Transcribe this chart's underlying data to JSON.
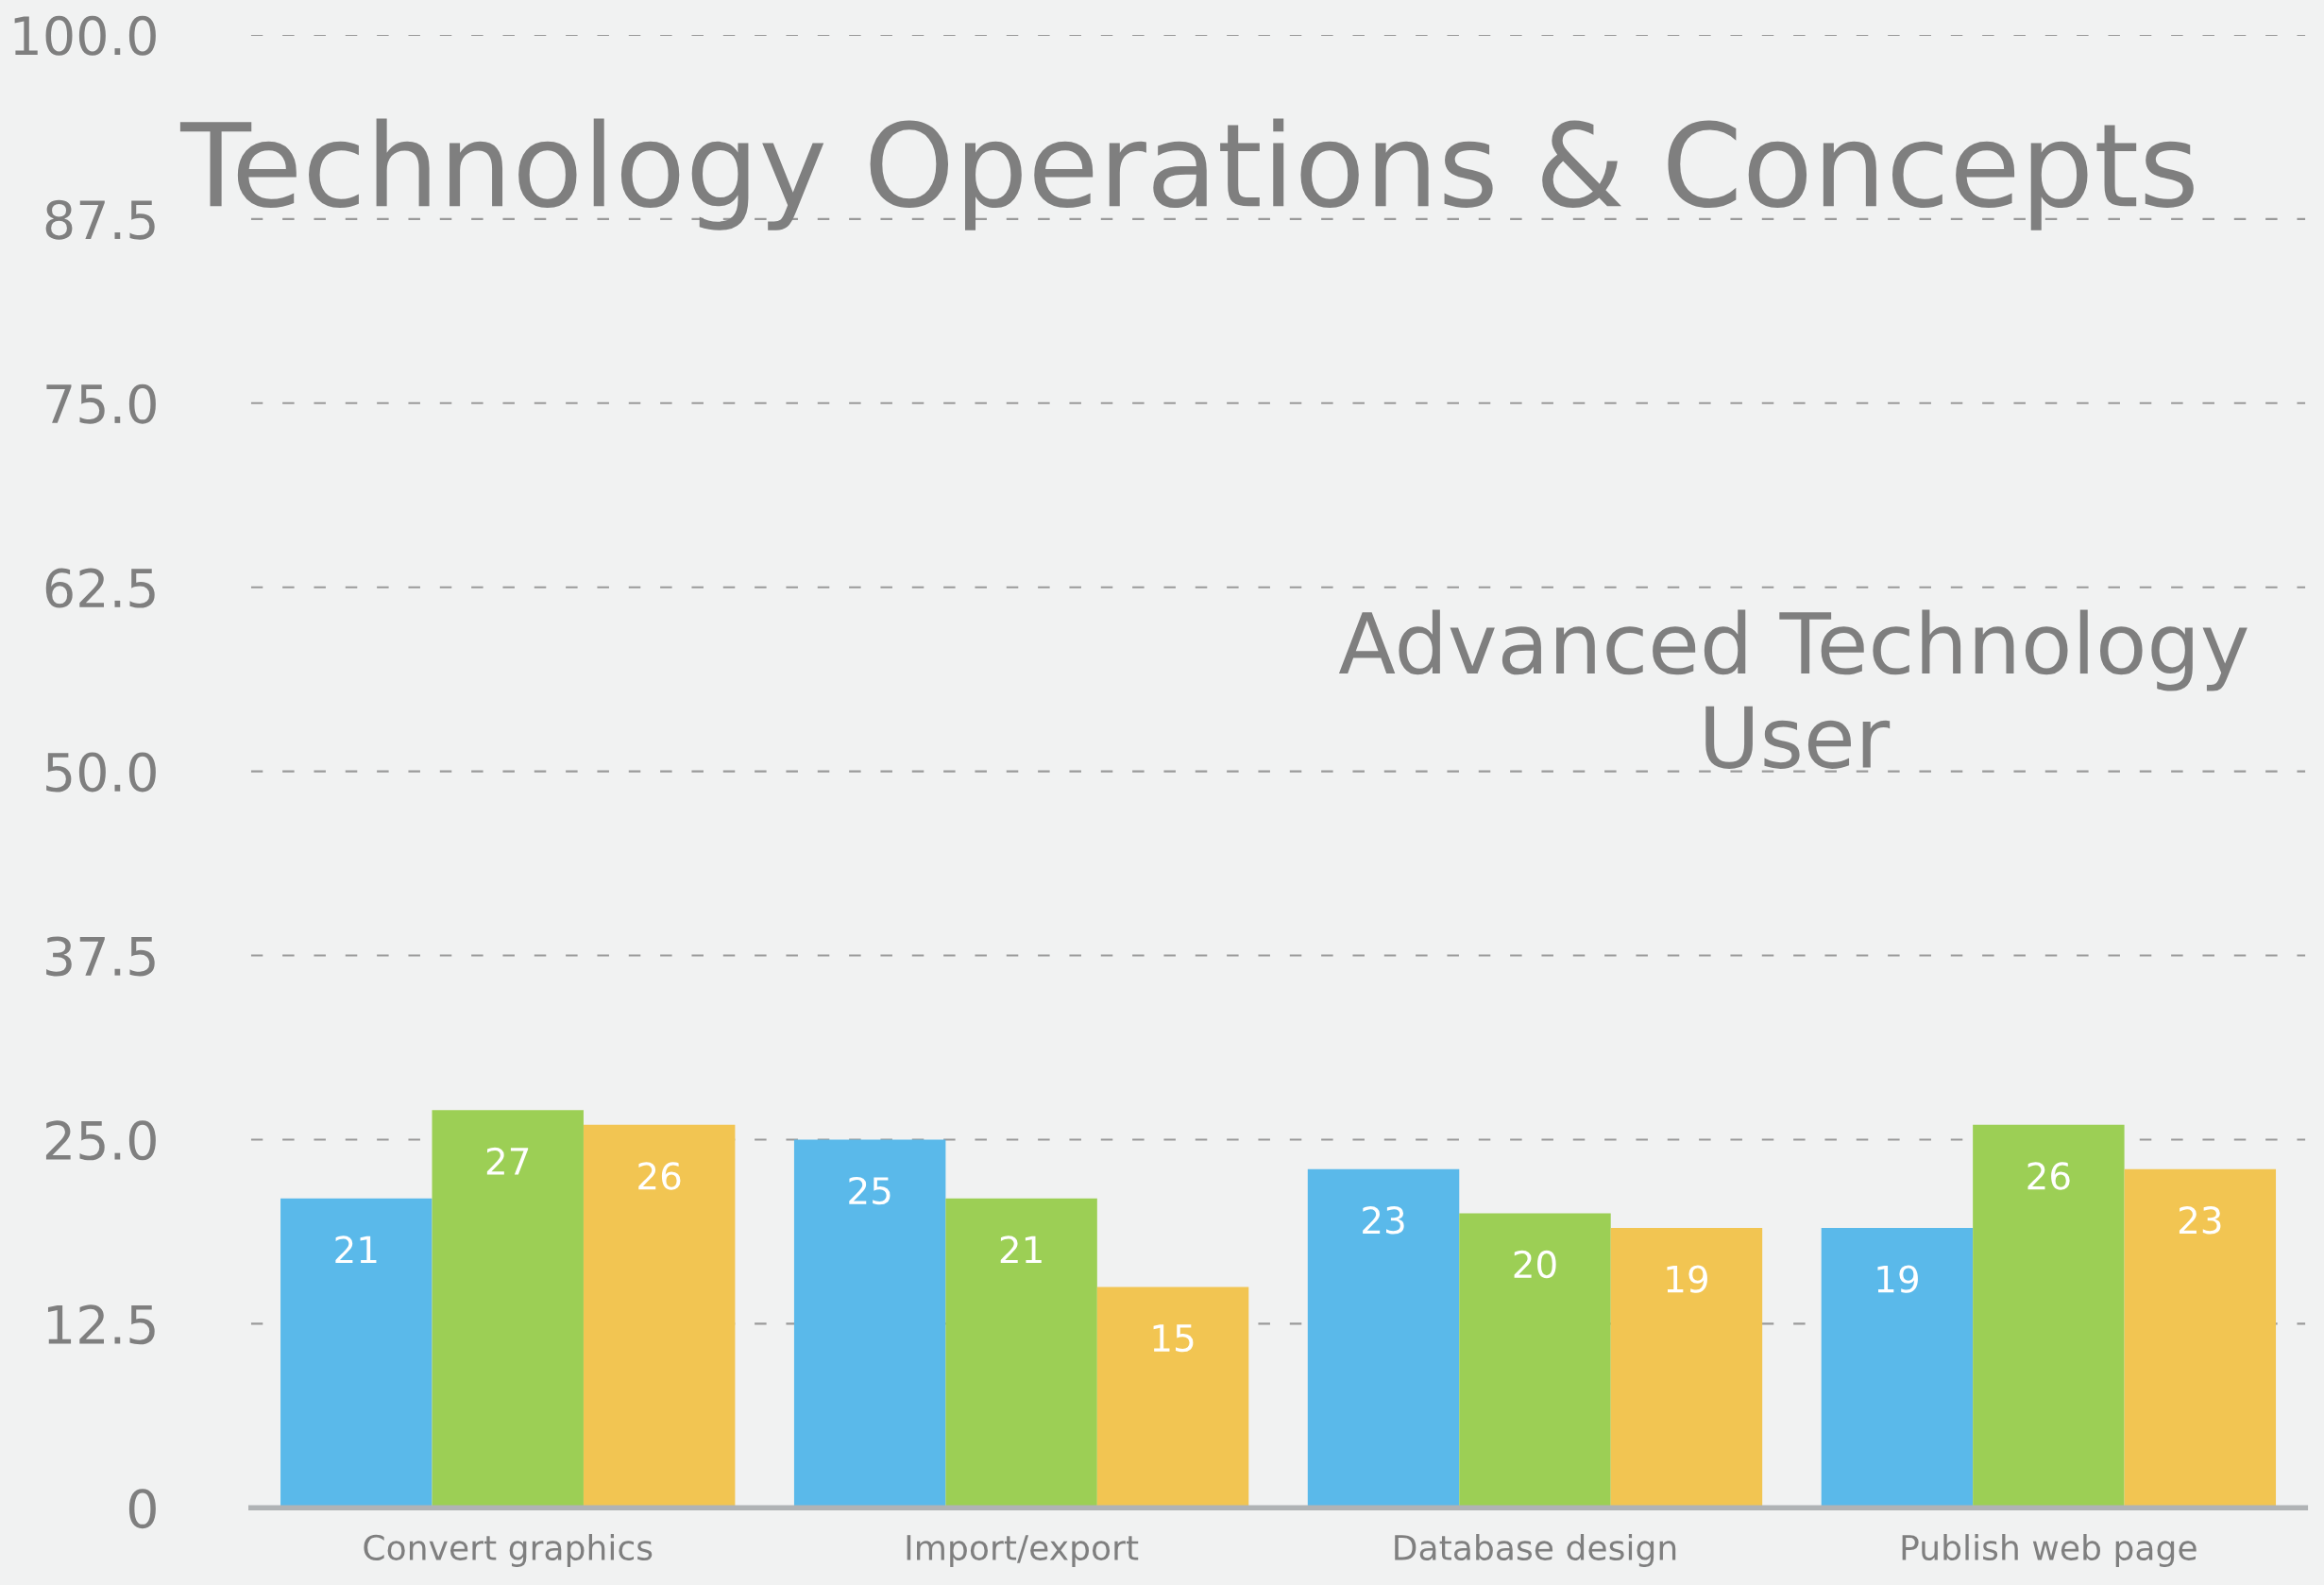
{
  "chart_data": {
    "type": "bar",
    "title": "Technology Operations & Concepts",
    "subtitle": "Advanced Technology User",
    "categories": [
      "Convert graphics",
      "Import/export",
      "Database design",
      "Publish web page"
    ],
    "series": [
      {
        "color": "#5ab9ea",
        "values": [
          21,
          25,
          23,
          19
        ]
      },
      {
        "color": "#9ccf55",
        "values": [
          27,
          21,
          20,
          26
        ]
      },
      {
        "color": "#f2c552",
        "values": [
          26,
          15,
          19,
          23
        ]
      }
    ],
    "ylim": [
      0,
      100
    ],
    "yticks": [
      0,
      12.5,
      {
        "value": 25,
        "label": "25.0"
      },
      37.5,
      {
        "value": 50,
        "label": "50.0"
      },
      62.5,
      {
        "value": 75,
        "label": "75.0"
      },
      87.5,
      {
        "value": 100,
        "label": "100.0"
      }
    ],
    "grid": "y",
    "legend": false,
    "data_labels": true
  }
}
